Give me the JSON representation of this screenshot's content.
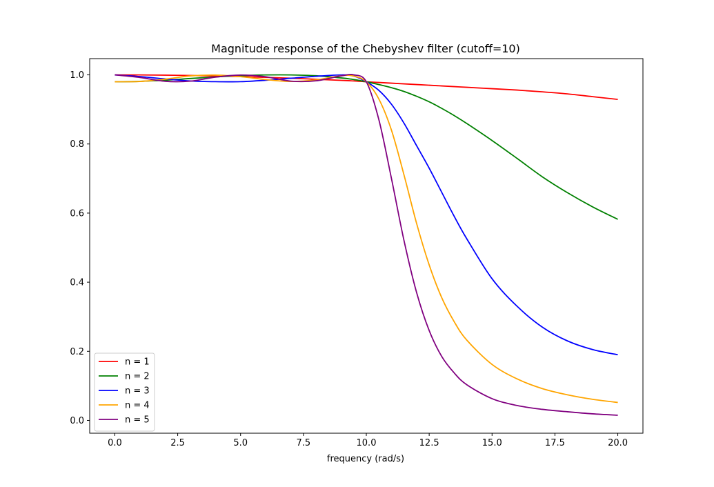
{
  "chart_data": {
    "type": "line",
    "title": "Magnitude response of the Chebyshev filter (cutoff=10)",
    "xlabel": "frequency (rad/s)",
    "ylabel": "",
    "xlim": [
      -1.0,
      21.0
    ],
    "ylim": [
      -0.037,
      1.047
    ],
    "xticks": [
      0.0,
      2.5,
      5.0,
      7.5,
      10.0,
      12.5,
      15.0,
      17.5,
      20.0
    ],
    "xtick_labels": [
      "0.0",
      "2.5",
      "5.0",
      "7.5",
      "10.0",
      "12.5",
      "15.0",
      "17.5",
      "20.0"
    ],
    "yticks": [
      0.0,
      0.2,
      0.4,
      0.6,
      0.8,
      1.0
    ],
    "ytick_labels": [
      "0.0",
      "0.2",
      "0.4",
      "0.6",
      "0.8",
      "1.0"
    ],
    "grid": false,
    "legend_position": "lower-left",
    "x": [
      0,
      1,
      2,
      3,
      4,
      5,
      6,
      7,
      8,
      9,
      9.5,
      10,
      10.5,
      11,
      11.5,
      12,
      12.5,
      13,
      13.5,
      14,
      15,
      16,
      17,
      18,
      19,
      20
    ],
    "series": [
      {
        "name": "n = 1",
        "color": "#ff0000",
        "values": [
          1.0,
          0.9998,
          0.9992,
          0.9982,
          0.9968,
          0.995,
          0.9928,
          0.9903,
          0.9874,
          0.9841,
          0.9824,
          0.98,
          0.978,
          0.976,
          0.974,
          0.972,
          0.97,
          0.968,
          0.966,
          0.964,
          0.96,
          0.956,
          0.951,
          0.945,
          0.937,
          0.929
        ]
      },
      {
        "name": "n = 2",
        "color": "#008000",
        "values": [
          0.98,
          0.9812,
          0.9846,
          0.9895,
          0.9941,
          0.9976,
          0.9998,
          0.9999,
          0.9975,
          0.9912,
          0.9865,
          0.98,
          0.972,
          0.963,
          0.952,
          0.938,
          0.922,
          0.903,
          0.882,
          0.859,
          0.81,
          0.758,
          0.705,
          0.659,
          0.618,
          0.582
        ]
      },
      {
        "name": "n = 3",
        "color": "#0000ff",
        "values": [
          1.0,
          0.9951,
          0.9882,
          0.9824,
          0.9803,
          0.9804,
          0.9845,
          0.9902,
          0.9959,
          0.9999,
          0.9965,
          0.98,
          0.955,
          0.915,
          0.86,
          0.795,
          0.73,
          0.66,
          0.59,
          0.525,
          0.41,
          0.33,
          0.27,
          0.23,
          0.205,
          0.19
        ]
      },
      {
        "name": "n = 4",
        "color": "#ffa500",
        "values": [
          0.98,
          0.981,
          0.9875,
          0.997,
          0.9995,
          0.9948,
          0.9865,
          0.9809,
          0.9855,
          0.9975,
          0.9965,
          0.98,
          0.93,
          0.84,
          0.71,
          0.57,
          0.45,
          0.355,
          0.285,
          0.232,
          0.162,
          0.12,
          0.092,
          0.074,
          0.061,
          0.052
        ]
      },
      {
        "name": "n = 5",
        "color": "#800080",
        "values": [
          1.0,
          0.9925,
          0.9815,
          0.9818,
          0.9935,
          0.9995,
          0.9945,
          0.9818,
          0.9828,
          0.9972,
          1.0,
          0.98,
          0.87,
          0.7,
          0.52,
          0.37,
          0.26,
          0.185,
          0.137,
          0.103,
          0.063,
          0.043,
          0.032,
          0.025,
          0.019,
          0.015
        ]
      }
    ]
  }
}
